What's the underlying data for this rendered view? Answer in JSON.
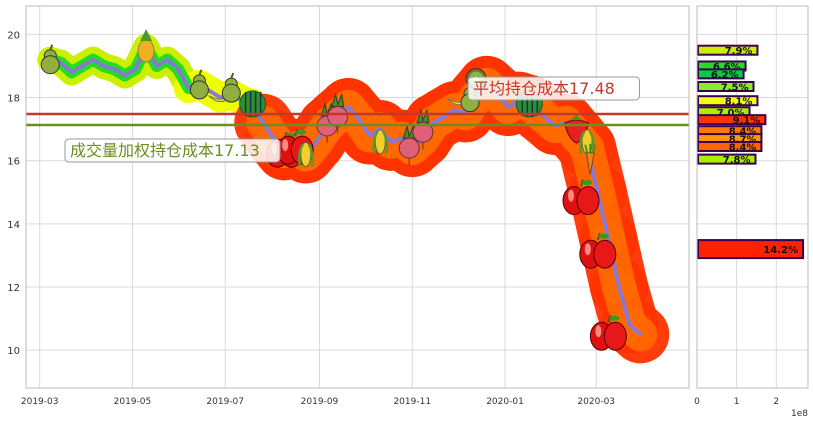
{
  "chart_data": [
    {
      "type": "line",
      "title": "",
      "xlabel": "",
      "ylabel": "",
      "x_ticks": [
        "2019-03",
        "2019-05",
        "2019-07",
        "2019-09",
        "2019-11",
        "2020-01",
        "2020-03"
      ],
      "y_ticks": [
        10,
        12,
        14,
        16,
        18,
        20
      ],
      "xlim": [
        "2019-02-20",
        "2020-05-01"
      ],
      "ylim": [
        8.8,
        20.9
      ],
      "grid": true,
      "series": [
        {
          "values": [
            {
              "x": "2019-03-08",
              "y": 19.2
            },
            {
              "x": "2019-03-15",
              "y": 19.1
            },
            {
              "x": "2019-03-22",
              "y": 18.8
            },
            {
              "x": "2019-03-29",
              "y": 19.0
            },
            {
              "x": "2019-04-05",
              "y": 19.2
            },
            {
              "x": "2019-04-12",
              "y": 19.0
            },
            {
              "x": "2019-04-19",
              "y": 18.9
            },
            {
              "x": "2019-04-26",
              "y": 18.7
            },
            {
              "x": "2019-05-03",
              "y": 18.9
            },
            {
              "x": "2019-05-10",
              "y": 19.6
            },
            {
              "x": "2019-05-17",
              "y": 19.0
            },
            {
              "x": "2019-05-24",
              "y": 19.2
            },
            {
              "x": "2019-05-31",
              "y": 18.9
            },
            {
              "x": "2019-06-07",
              "y": 18.3
            },
            {
              "x": "2019-06-14",
              "y": 18.4
            },
            {
              "x": "2019-06-21",
              "y": 18.2
            },
            {
              "x": "2019-06-28",
              "y": 18.0
            },
            {
              "x": "2019-07-05",
              "y": 18.1
            },
            {
              "x": "2019-07-12",
              "y": 17.9
            },
            {
              "x": "2019-07-19",
              "y": 17.8
            },
            {
              "x": "2019-07-26",
              "y": 17.2
            },
            {
              "x": "2019-08-02",
              "y": 16.7
            },
            {
              "x": "2019-08-09",
              "y": 16.3
            },
            {
              "x": "2019-08-16",
              "y": 16.4
            },
            {
              "x": "2019-08-23",
              "y": 16.2
            },
            {
              "x": "2019-08-30",
              "y": 16.6
            },
            {
              "x": "2019-09-06",
              "y": 17.1
            },
            {
              "x": "2019-09-13",
              "y": 17.4
            },
            {
              "x": "2019-09-20",
              "y": 17.7
            },
            {
              "x": "2019-09-27",
              "y": 17.3
            },
            {
              "x": "2019-10-04",
              "y": 16.8
            },
            {
              "x": "2019-10-11",
              "y": 17.0
            },
            {
              "x": "2019-10-18",
              "y": 16.6
            },
            {
              "x": "2019-10-25",
              "y": 16.7
            },
            {
              "x": "2019-11-01",
              "y": 16.4
            },
            {
              "x": "2019-11-08",
              "y": 16.7
            },
            {
              "x": "2019-11-15",
              "y": 17.2
            },
            {
              "x": "2019-11-22",
              "y": 17.4
            },
            {
              "x": "2019-11-29",
              "y": 17.6
            },
            {
              "x": "2019-12-06",
              "y": 17.5
            },
            {
              "x": "2019-12-13",
              "y": 18.0
            },
            {
              "x": "2019-12-20",
              "y": 18.4
            },
            {
              "x": "2019-12-27",
              "y": 18.1
            },
            {
              "x": "2020-01-03",
              "y": 17.7
            },
            {
              "x": "2020-01-10",
              "y": 17.9
            },
            {
              "x": "2020-01-17",
              "y": 17.8
            },
            {
              "x": "2020-01-24",
              "y": 17.5
            },
            {
              "x": "2020-02-03",
              "y": 17.1
            },
            {
              "x": "2020-02-10",
              "y": 17.2
            },
            {
              "x": "2020-02-17",
              "y": 16.8
            },
            {
              "x": "2020-02-24",
              "y": 16.4
            },
            {
              "x": "2020-03-02",
              "y": 15.0
            },
            {
              "x": "2020-03-09",
              "y": 13.5
            },
            {
              "x": "2020-03-16",
              "y": 12.0
            },
            {
              "x": "2020-03-23",
              "y": 10.8
            },
            {
              "x": "2020-03-30",
              "y": 10.5
            }
          ]
        }
      ],
      "annotations": {
        "avg_cost": {
          "text": "平均持仓成本17.48",
          "value": 17.48,
          "color": "#c0392b"
        },
        "vwap_cost": {
          "text": "成交量加权持仓成本17.13",
          "value": 17.13,
          "color": "#6b8e23"
        }
      },
      "decorations": [
        {
          "icon": "pear-icon",
          "x": "2019-03-08",
          "y": 19.2
        },
        {
          "icon": "pineapple-icon",
          "x": "2019-05-10",
          "y": 19.6
        },
        {
          "icon": "pear-icon",
          "x": "2019-06-14",
          "y": 18.4
        },
        {
          "icon": "banana-icon",
          "x": "2019-06-28",
          "y": 18.0
        },
        {
          "icon": "pear-icon",
          "x": "2019-07-05",
          "y": 18.3
        },
        {
          "icon": "watermelon-icon",
          "x": "2019-07-19",
          "y": 17.8
        },
        {
          "icon": "apple-icon",
          "x": "2019-08-09",
          "y": 16.3
        },
        {
          "icon": "apple-icon",
          "x": "2019-08-16",
          "y": 16.4
        },
        {
          "icon": "corn-icon",
          "x": "2019-08-23",
          "y": 16.2
        },
        {
          "icon": "radish-icon",
          "x": "2019-09-06",
          "y": 17.1
        },
        {
          "icon": "radish-icon",
          "x": "2019-09-13",
          "y": 17.4
        },
        {
          "icon": "corn-icon",
          "x": "2019-10-11",
          "y": 16.6
        },
        {
          "icon": "radish-icon",
          "x": "2019-10-30",
          "y": 16.4
        },
        {
          "icon": "radish-icon",
          "x": "2019-11-08",
          "y": 16.9
        },
        {
          "icon": "banana-icon",
          "x": "2019-12-02",
          "y": 17.9
        },
        {
          "icon": "pear-icon",
          "x": "2019-12-09",
          "y": 18.0
        },
        {
          "icon": "kiwi-icon",
          "x": "2019-12-13",
          "y": 18.6
        },
        {
          "icon": "watermelon-icon",
          "x": "2020-01-17",
          "y": 17.8
        },
        {
          "icon": "strawberry-icon",
          "x": "2020-02-17",
          "y": 17.0
        },
        {
          "icon": "corn-icon",
          "x": "2020-02-24",
          "y": 16.6
        },
        {
          "icon": "carrot-icon",
          "x": "2020-02-26",
          "y": 16.0
        },
        {
          "icon": "apple-icon",
          "x": "2020-02-20",
          "y": 14.8
        },
        {
          "icon": "apple-icon",
          "x": "2020-03-02",
          "y": 13.1
        },
        {
          "icon": "apple-icon",
          "x": "2020-03-09",
          "y": 10.5
        }
      ]
    },
    {
      "type": "bar",
      "orientation": "horizontal",
      "xlabel": "",
      "x_ticks": [
        "0",
        "1",
        "2"
      ],
      "x_offset_label": "1e8",
      "xlim": [
        0,
        280000000
      ],
      "ylim": [
        8.8,
        20.9
      ],
      "bars": [
        {
          "y": 19.5,
          "value": 150000000,
          "label": "7.9%",
          "color": "#ccee00"
        },
        {
          "y": 19.0,
          "value": 120000000,
          "label": "6.6%",
          "color": "#22dd22"
        },
        {
          "y": 18.75,
          "value": 115000000,
          "label": "6.2%",
          "color": "#00cc44"
        },
        {
          "y": 18.35,
          "value": 140000000,
          "label": "7.5%",
          "color": "#88ee22"
        },
        {
          "y": 17.9,
          "value": 150000000,
          "label": "8.1%",
          "color": "#eeff11"
        },
        {
          "y": 17.55,
          "value": 130000000,
          "label": "7.0%",
          "color": "#aaee00"
        },
        {
          "y": 17.3,
          "value": 170000000,
          "label": "9.1%",
          "color": "#ff3300"
        },
        {
          "y": 16.95,
          "value": 160000000,
          "label": "8.4%",
          "color": "#ff7700"
        },
        {
          "y": 16.7,
          "value": 160000000,
          "label": "8.7%",
          "color": "#ff9900"
        },
        {
          "y": 16.45,
          "value": 160000000,
          "label": "8.4%",
          "color": "#ff6600"
        },
        {
          "y": 16.05,
          "value": 145000000,
          "label": "7.8%",
          "color": "#aaee00"
        },
        {
          "y": 13.2,
          "value": 265000000,
          "label": "14.2%",
          "color": "#ff2200"
        }
      ]
    }
  ]
}
